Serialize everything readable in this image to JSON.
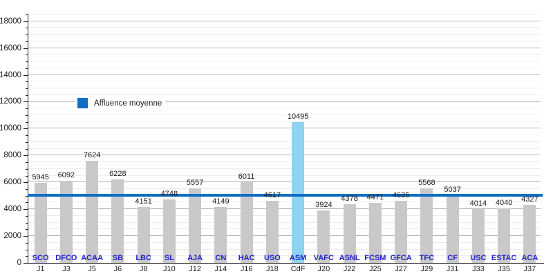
{
  "chart_data": {
    "type": "bar",
    "title": "",
    "legend_label": "Affluence moyenne",
    "legend_position": "upper-left-inside",
    "categories": [
      "J1",
      "J3",
      "J5",
      "J6",
      "J8",
      "J10",
      "J12",
      "J14",
      "J16",
      "J18",
      "CdF",
      "J20",
      "J22",
      "J25",
      "J27",
      "J29",
      "J31",
      "J33",
      "J35",
      "J37"
    ],
    "bar_labels": [
      "SCO",
      "DFCO",
      "ACAA",
      "SB",
      "LBC",
      "SL",
      "AJA",
      "CN",
      "HAC",
      "USO",
      "ASM",
      "VAFC",
      "ASNL",
      "FCSM",
      "GFCA",
      "TFC",
      "CF",
      "USC",
      "ESTAC",
      "ACA"
    ],
    "values": [
      5945,
      6092,
      7624,
      6228,
      4151,
      4748,
      5557,
      4149,
      6011,
      4617,
      10495,
      3924,
      4378,
      4471,
      4635,
      5568,
      5037,
      4014,
      4040,
      4327
    ],
    "highlighted_index": 10,
    "average_line_value": 5027,
    "xlabel": "",
    "ylabel": "",
    "ylim": [
      0,
      18500
    ],
    "y_major_step": 2000,
    "y_minor_step": 500,
    "y_tick_labels": [
      "0",
      "2000",
      "4000",
      "6000",
      "8000",
      "10000",
      "12000",
      "14000",
      "16000",
      "18000"
    ],
    "grid": "on",
    "colors": {
      "bar": "#c9c9c9",
      "highlighted_bar": "#8ed3f2",
      "average_line": "#0e6ec5",
      "legend_swatch": "#0e6ec5",
      "team_label": "#2222cc",
      "grid_minor": "#ececec",
      "grid_major": "#b3b3b3",
      "axis": "#1a1a1a"
    }
  }
}
